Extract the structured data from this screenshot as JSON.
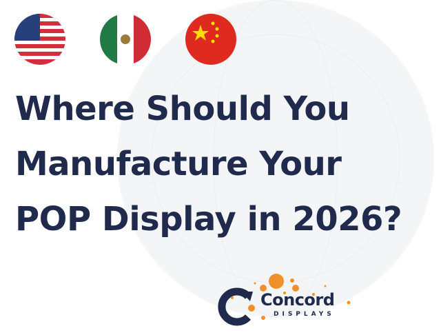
{
  "flags": [
    {
      "country": "United States",
      "icon": "us-flag-icon"
    },
    {
      "country": "Mexico",
      "icon": "mexico-flag-icon"
    },
    {
      "country": "China",
      "icon": "china-flag-icon"
    }
  ],
  "title": {
    "lines": [
      "Where Should You",
      "Manufacture Your",
      "POP Display in 2026?"
    ]
  },
  "logo": {
    "brand": "Concord",
    "tagline": "DISPLAYS"
  },
  "colors": {
    "title": "#1f2a4c",
    "accent": "#f0902c",
    "background": "#ffffff"
  }
}
